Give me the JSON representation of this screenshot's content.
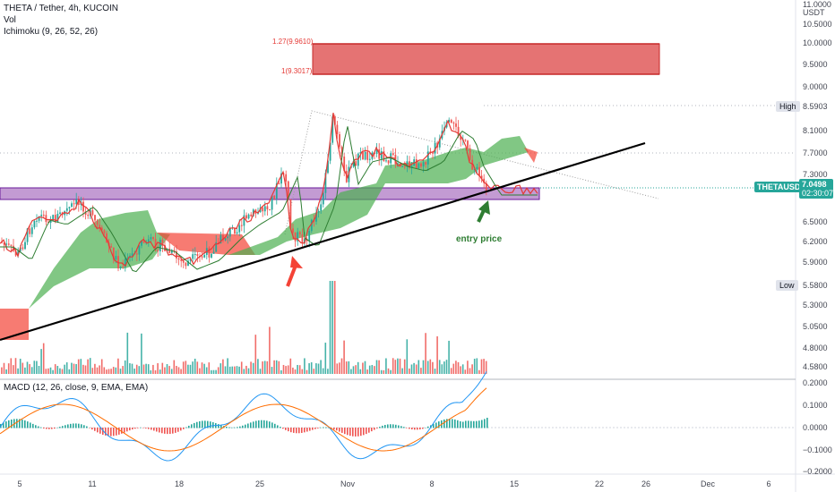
{
  "header": {
    "symbol_line": "THETA / Tether, 4h, KUCOIN",
    "vol_label": "Vol",
    "ichimoku_label": "Ichimoku (9, 26, 52, 26)",
    "macd_label": "MACD (12, 26, close, 9, EMA, EMA)"
  },
  "price_axis": {
    "top_label": "11.0000",
    "unit": "USDT",
    "labels": [
      "10.5000",
      "10.0000",
      "9.5000",
      "9.0000",
      "8.1000",
      "7.7000",
      "7.3000",
      "6.5000",
      "6.2000",
      "5.9000",
      "5.3000",
      "5.0500",
      "4.8000",
      "4.5800"
    ]
  },
  "macd_axis": {
    "labels": [
      "0.2000",
      "0.1000",
      "0.0000",
      "−0.1000",
      "−0.2000"
    ]
  },
  "time_axis": {
    "labels": [
      "5",
      "11",
      "18",
      "25",
      "Nov",
      "8",
      "15",
      "22",
      "26",
      "Dec",
      "6"
    ]
  },
  "markers": {
    "high_label": "High",
    "high_value": "8.5903",
    "low_label": "Low",
    "low_value": "5.5800",
    "symbol_tag": "THETAUSDT",
    "last_price": "7.0498",
    "countdown": "02:30:07",
    "entry_text": "entry price"
  },
  "fib": {
    "level_1": "1.27(9.9610)",
    "level_2": "1(9.3017)"
  },
  "colors": {
    "up": "#26a69a",
    "down": "#ef5350",
    "cloud_green": "#4caf50",
    "cloud_red": "#f44336",
    "zone_purple": "#c39bd3",
    "zone_red": "#e57373",
    "trendline": "#000000",
    "tag_bg": "#26a69a"
  }
}
